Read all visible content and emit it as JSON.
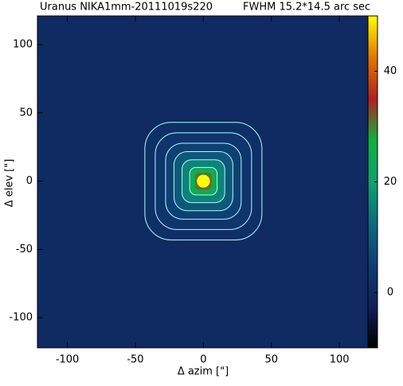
{
  "chart_data": {
    "type": "heatmap",
    "title": "Uranus NIKA1mm-20111019s220",
    "subtitle": "FWHM 15.2*14.5 arc sec",
    "x_label": "Δ azim [\"]",
    "y_label": "Δ elev [\"]",
    "xlim": [
      -122,
      128
    ],
    "xticks": [
      -100,
      -50,
      0,
      50,
      100
    ],
    "ylim": [
      -122,
      121
    ],
    "yticks": [
      -100,
      -50,
      0,
      50,
      100
    ],
    "clim": [
      -10,
      50
    ],
    "cticks": [
      0,
      20,
      40
    ],
    "colormap": [
      "#000000",
      "#10205a",
      "#0f3d72",
      "#0d6a80",
      "#10a070",
      "#10b040",
      "#b02020",
      "#e07800",
      "#ffff00"
    ],
    "peak": 50,
    "contour_levels": [
      1,
      2,
      4,
      7,
      12,
      20,
      30
    ],
    "contour_color": "#a8ffff"
  }
}
